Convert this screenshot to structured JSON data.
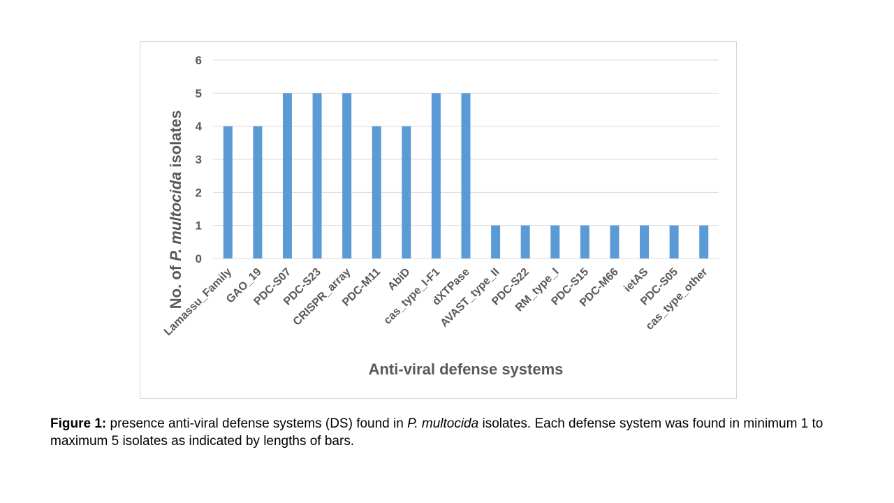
{
  "chart_data": {
    "type": "bar",
    "categories": [
      "Lamassu_Family",
      "GAO_19",
      "PDC-S07",
      "PDC-S23",
      "CRISPR_array",
      "PDC-M11",
      "AbiD",
      "cas_type_I-F1",
      "dXTPase",
      "AVAST_type_II",
      "PDC-S22",
      "RM_type_I",
      "PDC-S15",
      "PDC-M66",
      "ietAS",
      "PDC-S05",
      "cas_type_other"
    ],
    "values": [
      4,
      4,
      5,
      5,
      5,
      4,
      4,
      5,
      5,
      1,
      1,
      1,
      1,
      1,
      1,
      1,
      1
    ],
    "title": "",
    "xlabel": "Anti-viral defense systems",
    "ylabel": {
      "before": "No. of ",
      "italic": "P. multocida",
      "after": " isolates"
    },
    "ylim": [
      0,
      6
    ],
    "yticks": [
      "0",
      "1",
      "2",
      "3",
      "4",
      "5",
      "6"
    ],
    "grid": true,
    "legend": "none",
    "bar_color": "#5b9bd5"
  },
  "caption": {
    "label": "Figure 1:",
    "text_before": " presence anti-viral defense systems (DS) found in ",
    "italic": "P. multocida",
    "text_after": " isolates. Each defense system was found in minimum 1 to maximum 5 isolates as indicated by lengths of bars."
  }
}
